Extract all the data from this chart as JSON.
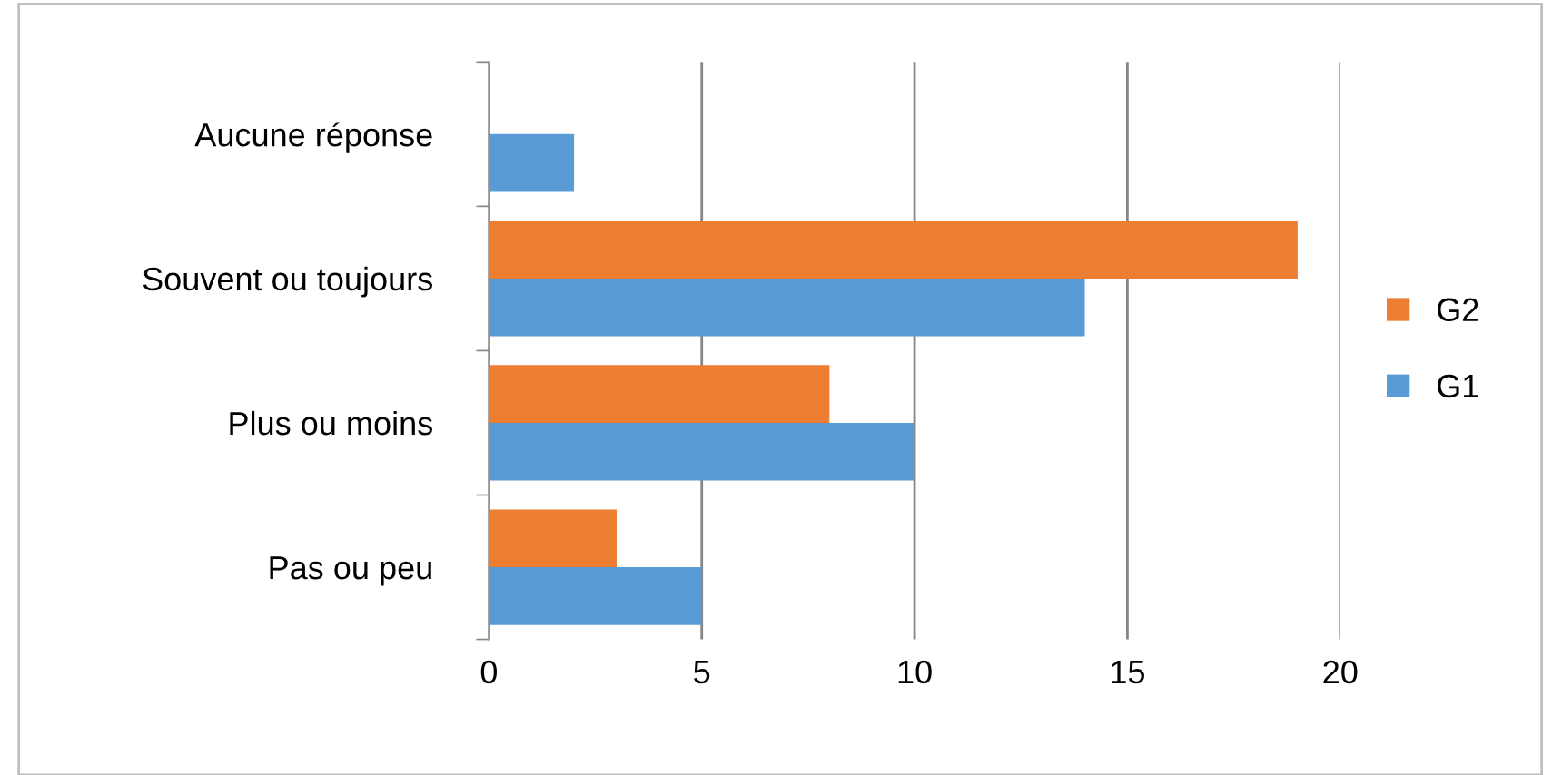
{
  "chart_data": {
    "type": "bar",
    "orientation": "horizontal",
    "categories": [
      "Aucune réponse",
      "Souvent ou toujours",
      "Plus ou moins",
      "Pas ou peu"
    ],
    "series": [
      {
        "name": "G1",
        "color": "#5b9bd5",
        "values": [
          2,
          14,
          10,
          5
        ]
      },
      {
        "name": "G2",
        "color": "#ed7d31",
        "values": [
          null,
          19,
          8,
          3
        ]
      }
    ],
    "xlim": [
      0,
      20
    ],
    "xticks": [
      0,
      5,
      10,
      15,
      20
    ],
    "grid": "x",
    "legend": "right"
  }
}
